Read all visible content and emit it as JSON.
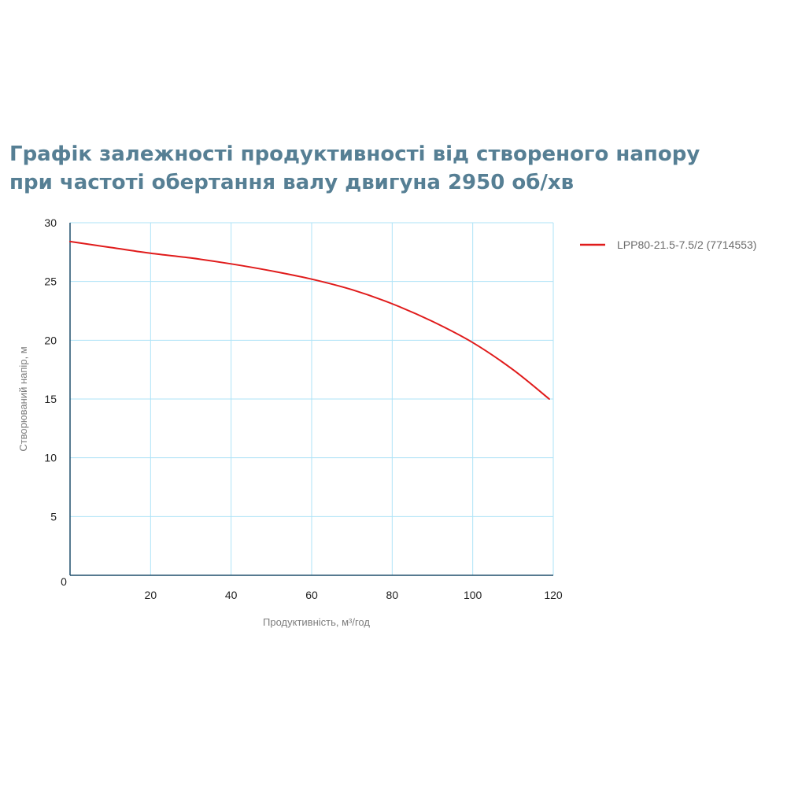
{
  "title": {
    "line1": "Графік залежності продуктивності від створеного напору",
    "line2": "при частоті обертання валу двигуна 2950 об/хв"
  },
  "chart_data": {
    "type": "line",
    "title": "Графік залежності продуктивності від створеного напору при частоті обертання валу двигуна 2950 об/хв",
    "xlabel": "Продуктивність, м³/год",
    "ylabel": "Створюваний напір, м",
    "xlim": [
      0,
      120
    ],
    "ylim": [
      0,
      30
    ],
    "x_ticks": [
      20,
      40,
      60,
      80,
      100,
      120
    ],
    "y_ticks": [
      5,
      10,
      15,
      20,
      25,
      30
    ],
    "origin_label": "0",
    "grid": true,
    "legend_position": "right",
    "colors": {
      "grid": "#aee3f7",
      "axis": "#1f4e6b",
      "series": "#e01b1b"
    },
    "series": [
      {
        "name": "LPP80-21.5-7.5/2 (7714553)",
        "color": "#e01b1b",
        "x": [
          0,
          10,
          20,
          30,
          40,
          50,
          60,
          70,
          80,
          90,
          100,
          110,
          119
        ],
        "y": [
          28.4,
          27.9,
          27.4,
          27.0,
          26.5,
          25.9,
          25.2,
          24.3,
          23.1,
          21.6,
          19.8,
          17.5,
          15.0
        ]
      }
    ]
  }
}
